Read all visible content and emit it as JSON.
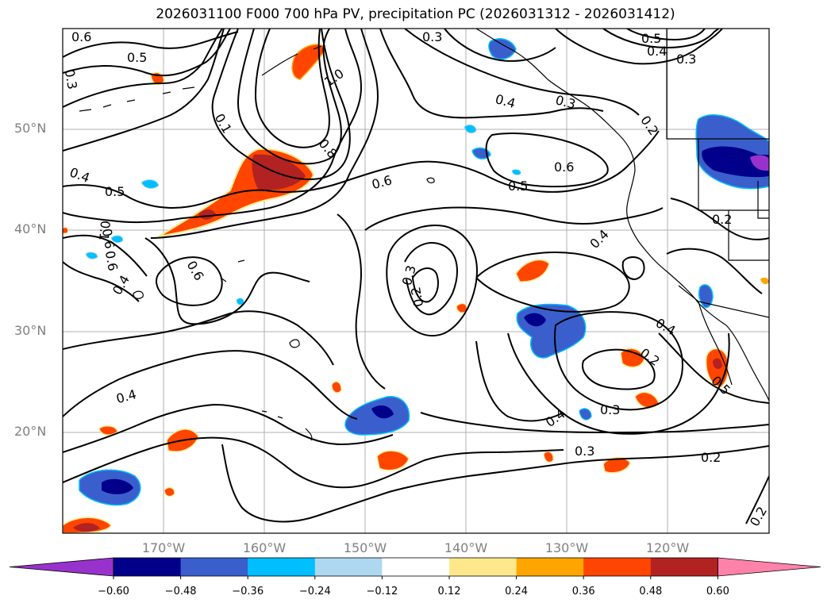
{
  "title": "2026031100 F000 700 hPa PV, precipitation PC (2026031312 - 2026031412)",
  "lat_labels": [
    "50°N",
    "40°N",
    "30°N",
    "20°N"
  ],
  "lon_labels": [
    "170°W",
    "160°W",
    "150°W",
    "140°W",
    "130°W",
    "120°W"
  ],
  "colorbar": {
    "ticks": [
      "−0.60",
      "−0.48",
      "−0.36",
      "−0.24",
      "−0.12",
      "0.12",
      "0.24",
      "0.36",
      "0.48",
      "0.60"
    ],
    "colors": [
      "#9932cc",
      "#00008b",
      "#3a5fcd",
      "#00bfff",
      "#add8f0",
      "#ffffff",
      "#ffe88c",
      "#ffa500",
      "#ff4500",
      "#b22222",
      "#ff82ab"
    ]
  },
  "contour_labels": [
    "0.6",
    "0.5",
    "0.3",
    "0.3",
    "0.5",
    "0.4",
    "0.3",
    "1.0",
    "0.4",
    "0.3",
    "0.1",
    "0.8",
    "0.2",
    "0.4",
    "0.5",
    "0.6",
    "0.6",
    "0.5",
    "0.2",
    "0.4",
    "0.6",
    "0.6",
    "0.3",
    "0.2",
    "0.4",
    "0.2",
    "0.4",
    "0.3",
    "0.4",
    "0.3",
    "0.2",
    "0.5",
    "0.2",
    "0.1",
    "0.6",
    "0.4"
  ]
}
